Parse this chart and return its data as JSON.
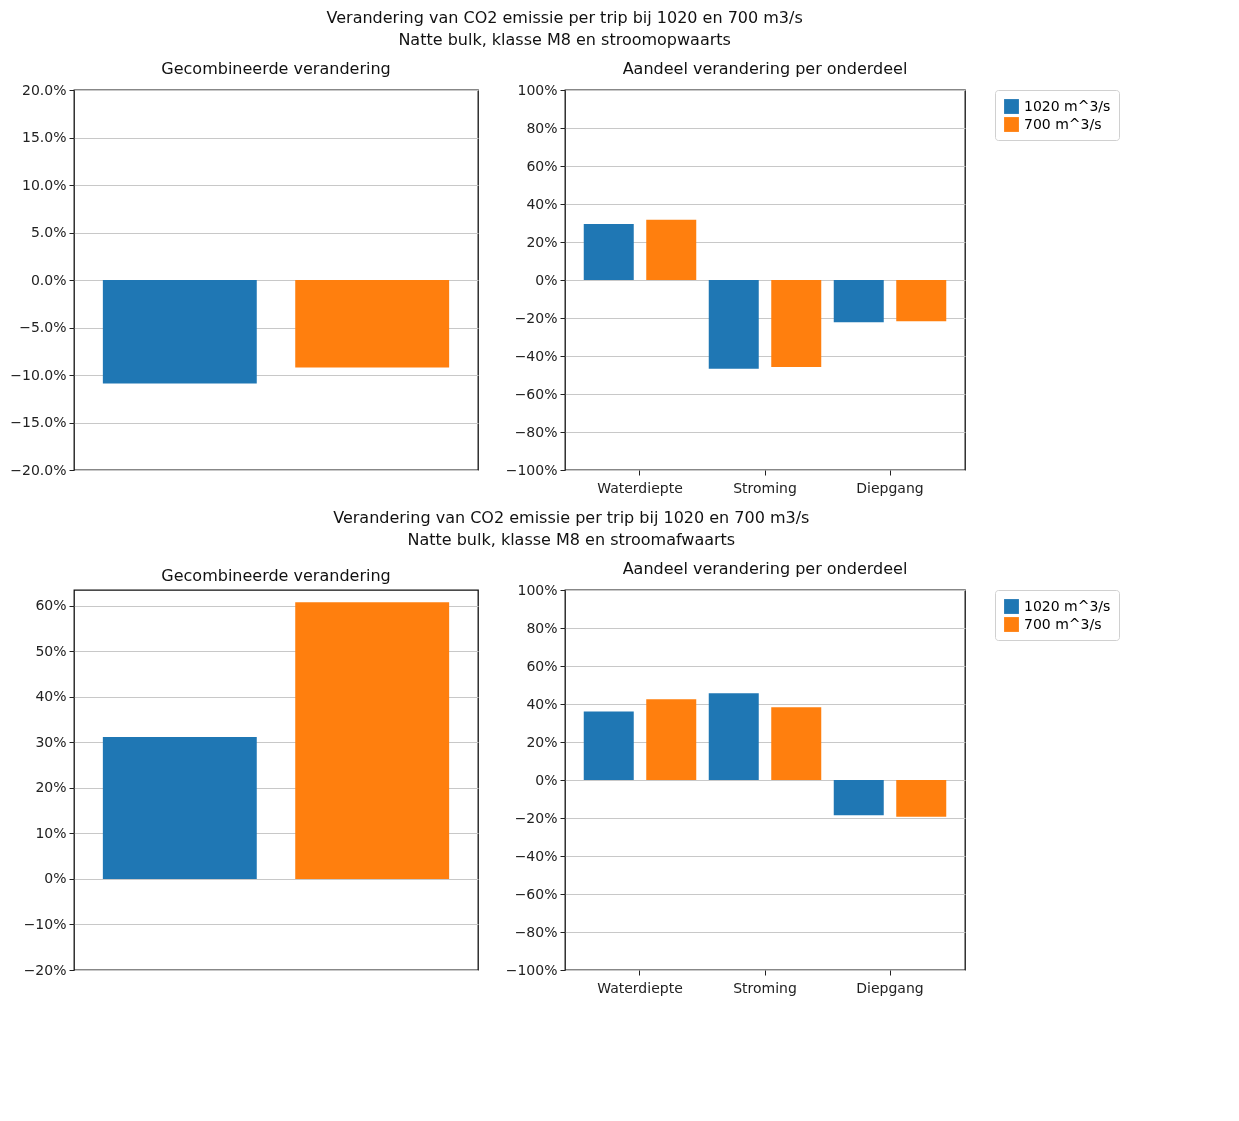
{
  "chart_data": [
    {
      "type": "bar",
      "title": "Gecombineerde verandering",
      "annotations": [
        "Verandering van CO2 emissie per trip bij 1020 en 700 m3/s\nNatte bulk, klasse M8 en stroomopwaarts"
      ],
      "categories": [
        null,
        null
      ],
      "values": [
        -10.9,
        -9.2
      ],
      "colors": [
        "#1f77b4",
        "#ff7f0e"
      ],
      "ylim": [
        -20,
        20
      ],
      "yticks": [
        {
          "value": -20,
          "label": "−20.0%"
        },
        {
          "value": -15,
          "label": "−15.0%"
        },
        {
          "value": -10,
          "label": "−10.0%"
        },
        {
          "value": -5,
          "label": "−5.0%"
        },
        {
          "value": 0,
          "label": "0.0%"
        },
        {
          "value": 5,
          "label": "5.0%"
        },
        {
          "value": 10,
          "label": "10.0%"
        },
        {
          "value": 15,
          "label": "15.0%"
        },
        {
          "value": 20,
          "label": "20.0%"
        }
      ],
      "grid": "y",
      "tick_labels": "y"
    },
    {
      "type": "bar",
      "title": "Aandeel verandering per onderdeel",
      "categories": [
        "Waterdiepte",
        "Stroming",
        "Diepgang"
      ],
      "series": [
        {
          "name": "1020 m^3/s",
          "color": "#1f77b4",
          "values": [
            29.5,
            -46.7,
            -22.3
          ]
        },
        {
          "name": "700 m^3/s",
          "color": "#ff7f0e",
          "values": [
            31.7,
            -45.8,
            -21.7
          ]
        }
      ],
      "ylim": [
        -100,
        100
      ],
      "yticks": [
        {
          "value": -100,
          "label": "−100%"
        },
        {
          "value": -80,
          "label": "−80%"
        },
        {
          "value": -60,
          "label": "−60%"
        },
        {
          "value": -40,
          "label": "−40%"
        },
        {
          "value": -20,
          "label": "−20%"
        },
        {
          "value": 0,
          "label": "0%"
        },
        {
          "value": 20,
          "label": "20%"
        },
        {
          "value": 40,
          "label": "40%"
        },
        {
          "value": 60,
          "label": "60%"
        },
        {
          "value": 80,
          "label": "80%"
        },
        {
          "value": 100,
          "label": "100%"
        }
      ],
      "grid": "y",
      "legend": "top right"
    },
    {
      "type": "bar",
      "title": "Gecombineerde verandering",
      "annotations": [
        "Verandering van CO2 emissie per trip bij 1020 en 700 m3/s\nNatte bulk, klasse M8 en stroomafwaarts"
      ],
      "categories": [
        null,
        null
      ],
      "values": [
        31.2,
        60.8
      ],
      "colors": [
        "#1f77b4",
        "#ff7f0e"
      ],
      "ylim": [
        -20,
        63.5
      ],
      "yticks": [
        {
          "value": -20,
          "label": "−20%"
        },
        {
          "value": -10,
          "label": "−10%"
        },
        {
          "value": 0,
          "label": "0%"
        },
        {
          "value": 10,
          "label": "10%"
        },
        {
          "value": 20,
          "label": "20%"
        },
        {
          "value": 30,
          "label": "30%"
        },
        {
          "value": 40,
          "label": "40%"
        },
        {
          "value": 50,
          "label": "50%"
        },
        {
          "value": 60,
          "label": "60%"
        }
      ],
      "grid": "y",
      "tick_labels": "y"
    },
    {
      "type": "bar",
      "title": "Aandeel verandering per onderdeel",
      "categories": [
        "Waterdiepte",
        "Stroming",
        "Diepgang"
      ],
      "series": [
        {
          "name": "1020 m^3/s",
          "color": "#1f77b4",
          "values": [
            36.1,
            45.7,
            -18.5
          ]
        },
        {
          "name": "700 m^3/s",
          "color": "#ff7f0e",
          "values": [
            42.5,
            38.3,
            -19.3
          ]
        }
      ],
      "ylim": [
        -100,
        100
      ],
      "yticks": [
        {
          "value": -100,
          "label": "−100%"
        },
        {
          "value": -80,
          "label": "−80%"
        },
        {
          "value": -60,
          "label": "−60%"
        },
        {
          "value": -40,
          "label": "−40%"
        },
        {
          "value": -20,
          "label": "−20%"
        },
        {
          "value": 0,
          "label": "0%"
        },
        {
          "value": 20,
          "label": "20%"
        },
        {
          "value": 40,
          "label": "40%"
        },
        {
          "value": 60,
          "label": "60%"
        },
        {
          "value": 80,
          "label": "80%"
        },
        {
          "value": 100,
          "label": "100%"
        }
      ],
      "grid": "y",
      "legend": "top right"
    }
  ]
}
